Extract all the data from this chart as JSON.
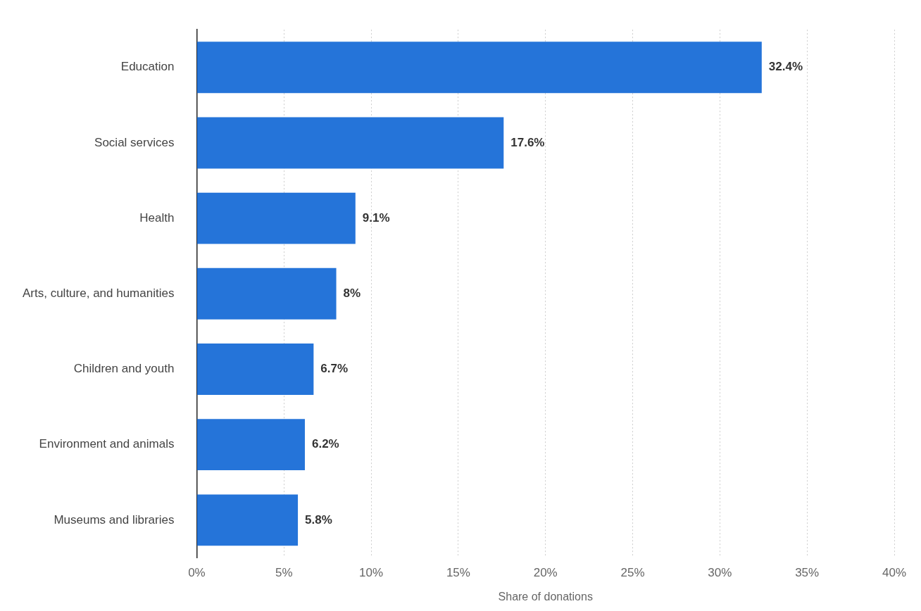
{
  "chart_data": {
    "type": "bar",
    "orientation": "horizontal",
    "xlabel": "Share of donations",
    "categories": [
      "Education",
      "Social services",
      "Health",
      "Arts, culture, and humanities",
      "Children and youth",
      "Environment and animals",
      "Museums and libraries"
    ],
    "values": [
      32.4,
      17.6,
      9.1,
      8,
      6.7,
      6.2,
      5.8
    ],
    "value_labels": [
      "32.4%",
      "17.6%",
      "9.1%",
      "8%",
      "6.7%",
      "6.2%",
      "5.8%"
    ],
    "color": "#2574d9",
    "xlim": [
      0,
      40
    ],
    "xticks": [
      {
        "value": 0,
        "label": "0%"
      },
      {
        "value": 5,
        "label": "5%"
      },
      {
        "value": 10,
        "label": "10%"
      },
      {
        "value": 15,
        "label": "15%"
      },
      {
        "value": 20,
        "label": "20%"
      },
      {
        "value": 25,
        "label": "25%"
      },
      {
        "value": 30,
        "label": "30%"
      },
      {
        "value": 35,
        "label": "35%"
      },
      {
        "value": 40,
        "label": "40%"
      }
    ],
    "grid": "x",
    "legend": false
  }
}
